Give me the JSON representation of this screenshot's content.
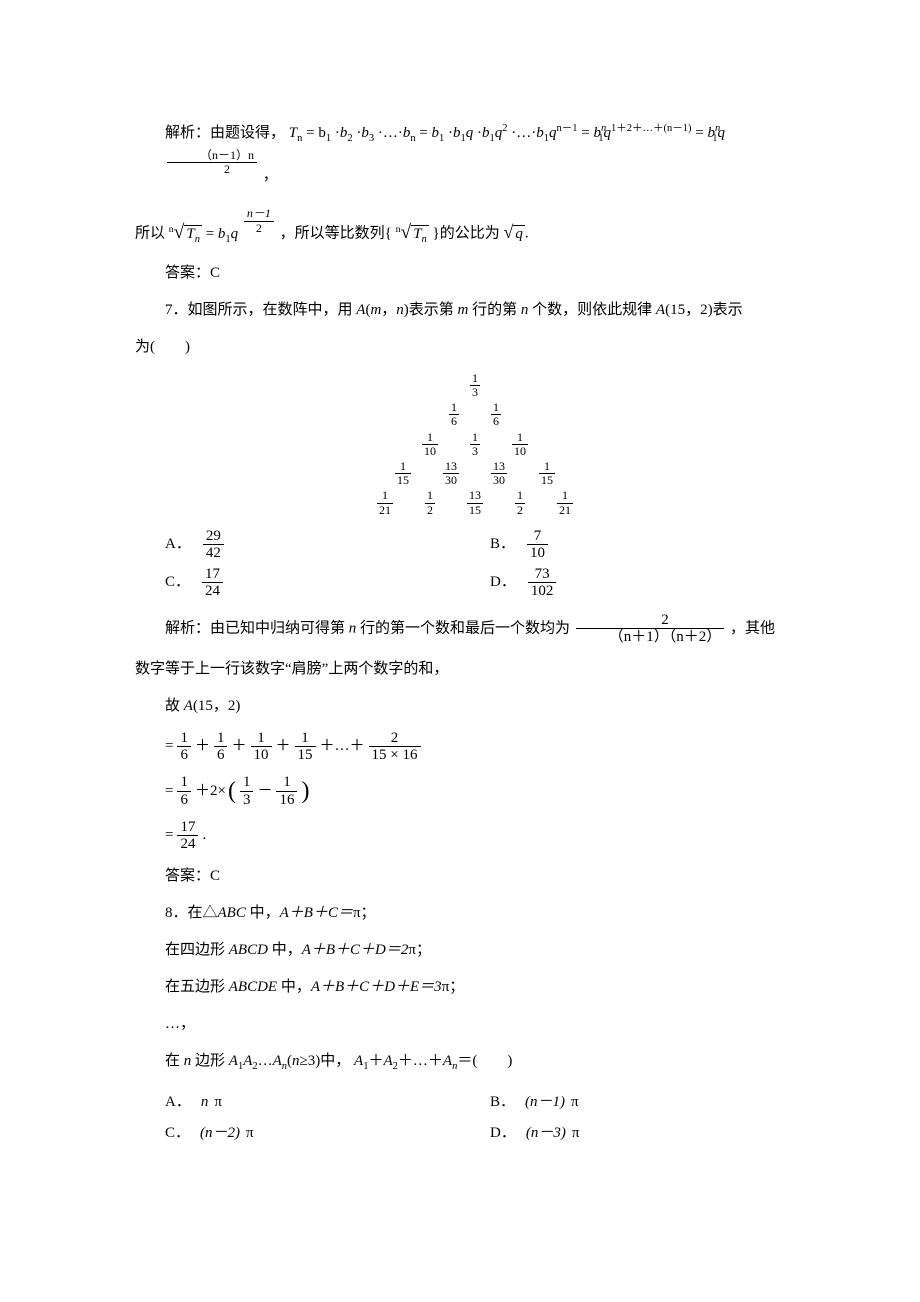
{
  "p6_analysis_prefix": "解析：由题设得，",
  "p6_eq1_lhs": "T",
  "p6_eq1_sub": "n",
  "p6_eq_part1": " = b",
  "p6_b1": "1",
  "p6_dot": "·",
  "p6_b2": "2",
  "p6_b3": "3",
  "p6_ellipsis": "·…·",
  "p6_bn": "n",
  "p6_q": "q",
  "p6_exp2": "2",
  "p6_exp_nm1": "n－1",
  "p6_exp_series": "1＋2＋…＋(n－1)",
  "p6_final_exp_num": "（n－1）n",
  "p6_final_exp_den": "2",
  "p6_comma": "，",
  "p6_so_prefix": "所以",
  "p6_root_n": "n",
  "p6_root_Tn": "T",
  "p6_mid_exp_num": "n－1",
  "p6_mid_exp_den": "2",
  "p6_so_text": "，所以等比数列{",
  "p6_so_text2": "}的公比为 ",
  "p6_sqrt_q": "q",
  "p6_answer_label": "答案：",
  "p6_answer": "C",
  "q7_text_a": "7．如图所示，在数阵中，用 ",
  "q7_A": "A",
  "q7_text_b": "(",
  "q7_m": "m",
  "q7_text_c": "，",
  "q7_n": "n",
  "q7_text_d": ")表示第 ",
  "q7_text_e": " 行的第 ",
  "q7_text_f": " 个数，则依此规律 ",
  "q7_text_g": "(15，2)表示",
  "q7_text_h": "为(　　)",
  "tri": [
    [
      [
        "1",
        "3"
      ]
    ],
    [
      [
        "1",
        "6"
      ],
      [
        "1",
        "6"
      ]
    ],
    [
      [
        "1",
        "10"
      ],
      [
        "1",
        "3"
      ],
      [
        "1",
        "10"
      ]
    ],
    [
      [
        "1",
        "15"
      ],
      [
        "13",
        "30"
      ],
      [
        "13",
        "30"
      ],
      [
        "1",
        "15"
      ]
    ],
    [
      [
        "1",
        "21"
      ],
      [
        "1",
        "2"
      ],
      [
        "13",
        "15"
      ],
      [
        "1",
        "2"
      ],
      [
        "1",
        "21"
      ]
    ]
  ],
  "q7_opts": {
    "A": [
      "29",
      "42"
    ],
    "B": [
      "7",
      "10"
    ],
    "C": [
      "17",
      "24"
    ],
    "D": [
      "73",
      "102"
    ]
  },
  "q7_analysis_a": "解析：由已知中归纳可得第 ",
  "q7_analysis_n": "n",
  "q7_analysis_b": " 行的第一个数和最后一个数均为",
  "q7_frac_num": "2",
  "q7_frac_den": "（n＋1）（n＋2）",
  "q7_analysis_c": "，其他",
  "q7_analysis_d": "数字等于上一行该数字“肩膀”上两个数字的和，",
  "q7_therefore": "故 ",
  "q7_A15": "A",
  "q7_A15_args": "(15，2)",
  "q7_eq1_parts": [
    [
      "1",
      "6"
    ],
    [
      "1",
      "6"
    ],
    [
      "1",
      "10"
    ],
    [
      "1",
      "15"
    ]
  ],
  "q7_eq1_plus": "＋",
  "q7_eq1_dots": "＋…＋",
  "q7_eq1_last_num": "2",
  "q7_eq1_last_den_a": "15",
  "q7_eq1_last_den_x": "×",
  "q7_eq1_last_den_b": "16",
  "q7_eq2_a": [
    "1",
    "6"
  ],
  "q7_eq2_plus": "＋2×",
  "q7_eq2_b": [
    "1",
    "3"
  ],
  "q7_eq2_minus": "－",
  "q7_eq2_c": [
    "1",
    "16"
  ],
  "q7_eq3": [
    "17",
    "24"
  ],
  "q7_eq3_dot": ".",
  "q7_answer": "C",
  "q8_l1": "8．在△",
  "q8_ABC": "ABC",
  "q8_l1b": " 中，",
  "q8_sum1": "A＋B＋C＝",
  "q8_pi": "π",
  "q8_semi": "；",
  "q8_l2a": "在四边形 ",
  "q8_ABCD": "ABCD",
  "q8_l2b": " 中，",
  "q8_sum2": "A＋B＋C＋D＝2",
  "q8_l3a": "在五边形 ",
  "q8_ABCDE": "ABCDE",
  "q8_l3b": " 中，",
  "q8_sum3": "A＋B＋C＋D＋E＝3",
  "q8_dots": "…，",
  "q8_l4a": "在 ",
  "q8_nvar": "n",
  "q8_l4b": " 边形 ",
  "q8_An": "A",
  "q8_s1": "1",
  "q8_s2": "2",
  "q8_l4c": "…",
  "q8_sn": "n",
  "q8_l4d": "(",
  "q8_l4e": "≥3)中，",
  "q8_l4f": "＋",
  "q8_l4g": "＋…＋",
  "q8_l4h": "＝(　　)",
  "q8_opts": {
    "A": "n",
    "B": "(n－1)",
    "C": "(n－2)",
    "D": "(n－3)"
  }
}
